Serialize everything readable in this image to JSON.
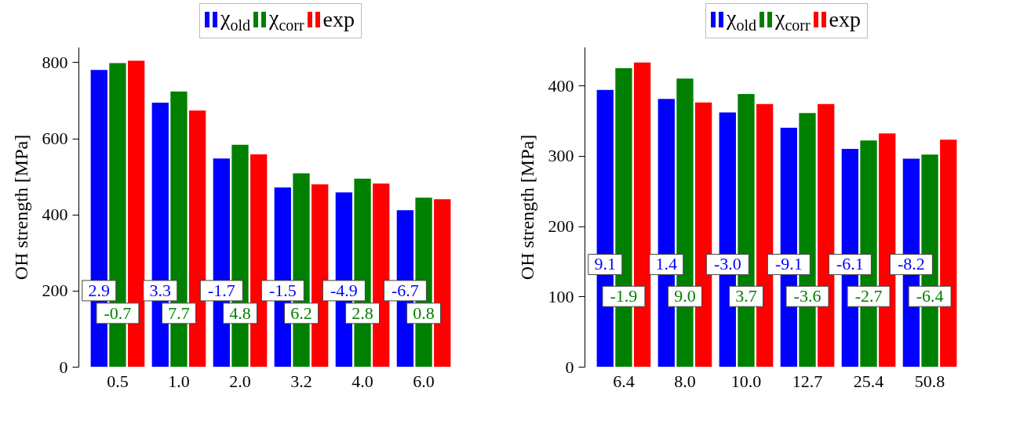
{
  "chart_data": [
    {
      "type": "bar",
      "ylabel": "OH strength [MPa]",
      "categories": [
        "0.5",
        "1.0",
        "2.0",
        "3.2",
        "4.0",
        "6.0"
      ],
      "ylim": [
        0,
        840
      ],
      "yticks": [
        0,
        200,
        400,
        600,
        800
      ],
      "legend": "top",
      "series": [
        {
          "name": "χ$_{old}$",
          "color": "#0000ff",
          "values": [
            780,
            694,
            547,
            471,
            458,
            411
          ]
        },
        {
          "name": "χ$_{corr}$",
          "color": "#008000",
          "values": [
            798,
            723,
            583,
            508,
            494,
            444
          ]
        },
        {
          "name": "exp",
          "color": "#ff0000",
          "values": [
            804,
            673,
            558,
            479,
            481,
            440
          ]
        }
      ],
      "annotations": [
        "2.9",
        "3.3",
        "-1.7",
        "-1.5",
        "-4.9",
        "-6.7",
        "-0.7",
        "7.7",
        "4.8",
        "6.2",
        "2.8",
        "0.8"
      ]
    },
    {
      "type": "bar",
      "ylabel": "OH strength [MPa]",
      "categories": [
        "6.4",
        "8.0",
        "10.0",
        "12.7",
        "25.4",
        "50.8"
      ],
      "ylim": [
        0,
        455
      ],
      "yticks": [
        0,
        100,
        200,
        300,
        400
      ],
      "legend": "top",
      "series": [
        {
          "name": "χ$_{old}$",
          "color": "#0000ff",
          "values": [
            394,
            381,
            362,
            340,
            310,
            296
          ]
        },
        {
          "name": "χ$_{corr}$",
          "color": "#008000",
          "values": [
            425,
            410,
            388,
            361,
            322,
            302
          ]
        },
        {
          "name": "exp",
          "color": "#ff0000",
          "values": [
            433,
            376,
            374,
            374,
            332,
            323
          ]
        }
      ],
      "annotations": [
        "9.1",
        "1.4",
        "-3.0",
        "-9.1",
        "-6.1",
        "-8.2",
        "-1.9",
        "9.0",
        "3.7",
        "-3.6",
        "-2.7",
        "-6.4"
      ]
    }
  ]
}
